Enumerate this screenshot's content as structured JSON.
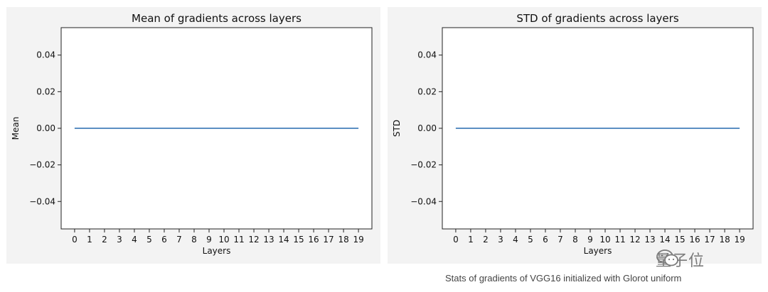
{
  "chart_data": [
    {
      "type": "line",
      "title": "Mean of gradients across layers",
      "xlabel": "Layers",
      "ylabel": "Mean",
      "x": [
        0,
        1,
        2,
        3,
        4,
        5,
        6,
        7,
        8,
        9,
        10,
        11,
        12,
        13,
        14,
        15,
        16,
        17,
        18,
        19
      ],
      "series": [
        {
          "values": [
            0,
            0,
            0,
            0,
            0,
            0,
            0,
            0,
            0,
            0,
            0,
            0,
            0,
            0,
            0,
            0,
            0,
            0,
            0,
            0
          ],
          "color": "#5b8fc2"
        }
      ],
      "xlim": [
        -0.9,
        19.9
      ],
      "ylim": [
        -0.055,
        0.055
      ],
      "yticks": [
        0.04,
        0.02,
        0.0,
        -0.02,
        -0.04
      ],
      "ytick_labels": [
        "0.04",
        "0.02",
        "0.00",
        "−0.02",
        "−0.04"
      ],
      "grid": false
    },
    {
      "type": "line",
      "title": "STD of gradients across layers",
      "xlabel": "Layers",
      "ylabel": "STD",
      "x": [
        0,
        1,
        2,
        3,
        4,
        5,
        6,
        7,
        8,
        9,
        10,
        11,
        12,
        13,
        14,
        15,
        16,
        17,
        18,
        19
      ],
      "series": [
        {
          "values": [
            0,
            0,
            0,
            0,
            0,
            0,
            0,
            0,
            0,
            0,
            0,
            0,
            0,
            0,
            0,
            0,
            0,
            0,
            0,
            0
          ],
          "color": "#5b8fc2"
        }
      ],
      "xlim": [
        -0.9,
        19.9
      ],
      "ylim": [
        -0.055,
        0.055
      ],
      "yticks": [
        0.04,
        0.02,
        0.0,
        -0.02,
        -0.04
      ],
      "ytick_labels": [
        "0.04",
        "0.02",
        "0.00",
        "−0.02",
        "−0.04"
      ],
      "grid": false
    }
  ],
  "caption": "Stats of gradients of VGG16 initialized with Glorot uniform",
  "watermark": {
    "text": "量子位",
    "icon": "wechat-icon"
  }
}
